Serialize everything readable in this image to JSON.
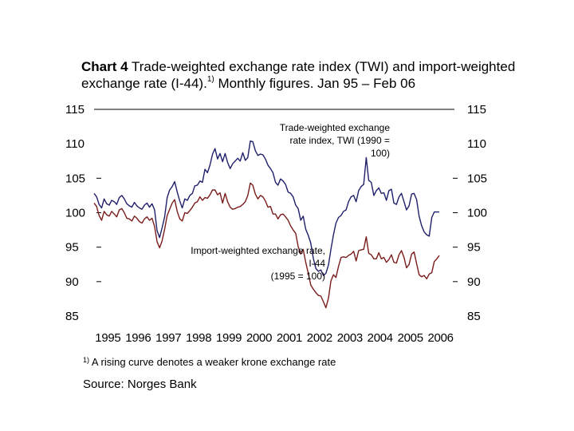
{
  "title": {
    "prefix": "Chart 4",
    "text": "Trade-weighted exchange rate index (TWI) and import-weighted exchange rate (I-44).",
    "note_ref": "1)",
    "suffix": "Monthly figures. Jan 95 – Feb 06"
  },
  "footnote": {
    "marker": "1)",
    "text": "A rising curve denotes a weaker krone exchange rate"
  },
  "source": "Source: Norges Bank",
  "chart_data": {
    "type": "line",
    "x_start": "1995-01",
    "x_frequency": "monthly",
    "x_tick_labels": [
      "1995",
      "1996",
      "1997",
      "1998",
      "1999",
      "2000",
      "2001",
      "2002",
      "2003",
      "2004",
      "2005",
      "2006"
    ],
    "ylim": [
      85,
      115
    ],
    "y_ticks_left": [
      "115",
      "110",
      "105",
      "100",
      "95",
      "90",
      "85"
    ],
    "y_ticks_right": [
      "115",
      "110",
      "105",
      "100",
      "95",
      "90",
      "85"
    ],
    "grid": false,
    "series": [
      {
        "name": "Trade-weighted exchange rate index, TWI (1990 = 100)",
        "color": "#1f1f6b",
        "values": [
          102.8,
          102.3,
          101.2,
          100.7,
          102.0,
          101.3,
          101.1,
          101.8,
          101.6,
          101.2,
          102.2,
          102.5,
          102.0,
          101.3,
          101.0,
          100.8,
          101.5,
          101.0,
          100.7,
          100.5,
          101.1,
          101.4,
          100.8,
          101.3,
          100.4,
          97.4,
          96.4,
          97.8,
          99.4,
          102.2,
          103.3,
          103.8,
          104.5,
          103.0,
          101.7,
          100.7,
          102.0,
          101.8,
          102.5,
          102.8,
          103.9,
          104.0,
          104.6,
          104.4,
          106.3,
          105.8,
          106.9,
          108.5,
          109.3,
          107.8,
          108.6,
          107.4,
          108.6,
          107.3,
          106.4,
          107.1,
          107.5,
          107.9,
          107.5,
          108.7,
          107.6,
          108.0,
          110.4,
          110.3,
          109.0,
          108.3,
          108.5,
          108.4,
          107.8,
          106.9,
          106.4,
          105.8,
          104.4,
          104.0,
          104.9,
          104.6,
          104.1,
          103.0,
          102.8,
          102.3,
          101.1,
          100.6,
          98.9,
          99.5,
          97.6,
          96.7,
          95.6,
          93.4,
          91.9,
          91.5,
          91.7,
          90.9,
          91.2,
          92.4,
          94.7,
          96.8,
          98.5,
          99.3,
          99.6,
          100.2,
          100.4,
          101.6,
          102.3,
          102.5,
          101.6,
          103.2,
          103.8,
          104.1,
          108.0,
          104.7,
          104.4,
          102.5,
          103.2,
          103.6,
          102.8,
          102.9,
          101.8,
          103.2,
          103.4,
          101.4,
          101.2,
          102.3,
          102.8,
          101.6,
          100.4,
          101.0,
          102.7,
          102.8,
          101.9,
          99.5,
          98.1,
          97.2,
          96.8,
          96.6,
          99.3,
          100.1,
          100.1,
          100.1
        ]
      },
      {
        "name": "Import-weighted exchange rate, I-44 (1995 = 100)",
        "color": "#7a1c1c",
        "values": [
          101.4,
          100.9,
          99.6,
          98.9,
          100.2,
          99.7,
          99.5,
          100.2,
          99.8,
          99.4,
          100.4,
          100.6,
          100.0,
          99.2,
          99.1,
          98.8,
          99.5,
          99.2,
          98.7,
          98.5,
          99.1,
          99.4,
          98.9,
          99.2,
          98.0,
          95.8,
          94.9,
          95.9,
          97.6,
          99.6,
          100.5,
          101.4,
          101.9,
          100.2,
          99.1,
          98.8,
          100.0,
          99.9,
          100.3,
          100.8,
          101.4,
          101.6,
          102.3,
          101.8,
          102.2,
          102.1,
          102.6,
          103.3,
          103.3,
          102.6,
          102.9,
          101.4,
          102.8,
          101.6,
          100.8,
          100.5,
          100.6,
          100.8,
          100.9,
          101.2,
          101.6,
          102.5,
          104.3,
          104.0,
          102.7,
          102.0,
          102.5,
          102.3,
          101.7,
          100.8,
          100.9,
          99.8,
          99.8,
          99.1,
          99.7,
          99.8,
          99.4,
          98.9,
          98.1,
          97.5,
          97.0,
          95.1,
          94.0,
          94.7,
          92.8,
          91.2,
          89.5,
          88.9,
          88.4,
          88.0,
          87.9,
          87.1,
          86.2,
          87.6,
          90.1,
          91.0,
          90.6,
          92.2,
          93.5,
          93.6,
          93.5,
          93.8,
          94.0,
          94.4,
          93.0,
          94.5,
          94.6,
          94.7,
          96.5,
          94.1,
          93.9,
          93.3,
          93.3,
          94.2,
          93.3,
          93.5,
          92.8,
          93.2,
          93.9,
          92.8,
          92.7,
          93.9,
          94.5,
          93.5,
          92.0,
          92.5,
          94.0,
          94.3,
          92.6,
          91.0,
          90.7,
          90.9,
          90.4,
          91.1,
          91.3,
          92.9,
          93.3,
          93.8
        ]
      }
    ],
    "annotations": [
      {
        "lines": [
          "Trade-weighted exchange",
          "rate index, TWI (1990 =",
          "100)"
        ],
        "series": "TWI"
      },
      {
        "lines": [
          "Import-weighted exchange rate,",
          "I-44",
          "(1995 = 100)"
        ],
        "series": "I-44"
      }
    ]
  }
}
